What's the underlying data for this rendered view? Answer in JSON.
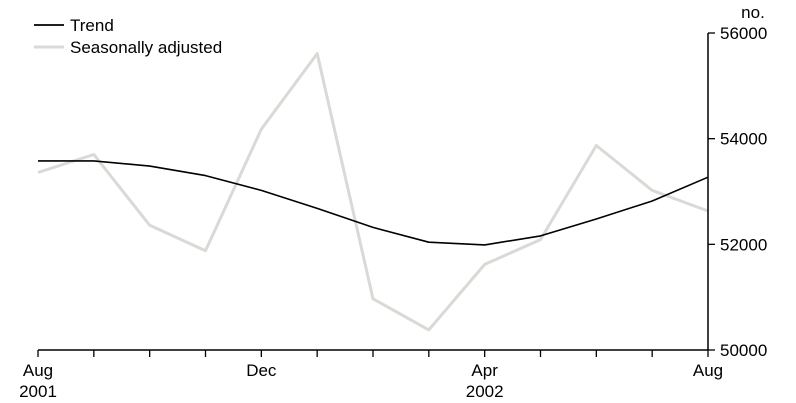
{
  "chart_data": {
    "type": "line",
    "title": "",
    "xlabel": "",
    "ylabel": "no.",
    "ylim": [
      50000,
      56000
    ],
    "y_ticks": [
      50000,
      52000,
      54000,
      56000
    ],
    "y_axis_position": "right",
    "x_categories": [
      "Aug 2001",
      "Sep 2001",
      "Oct 2001",
      "Nov 2001",
      "Dec 2001",
      "Jan 2002",
      "Feb 2002",
      "Mar 2002",
      "Apr 2002",
      "May 2002",
      "Jun 2002",
      "Jul 2002",
      "Aug 2002"
    ],
    "x_tick_labels": [
      {
        "index": 0,
        "month": "Aug",
        "year": "2001"
      },
      {
        "index": 4,
        "month": "Dec",
        "year": ""
      },
      {
        "index": 8,
        "month": "Apr",
        "year": "2002"
      },
      {
        "index": 12,
        "month": "Aug",
        "year": ""
      }
    ],
    "legend_position": "top-left",
    "grid": false,
    "series": [
      {
        "name": "Trend",
        "color": "#000000",
        "values": [
          53580,
          53580,
          53480,
          53300,
          53020,
          52680,
          52320,
          52040,
          51990,
          52160,
          52480,
          52820,
          53270
        ]
      },
      {
        "name": "Seasonally adjusted",
        "color": "#d9d9d6",
        "values": [
          53360,
          53700,
          52360,
          51880,
          54180,
          55610,
          50970,
          50380,
          51620,
          52090,
          53870,
          53020,
          52630
        ]
      }
    ]
  }
}
